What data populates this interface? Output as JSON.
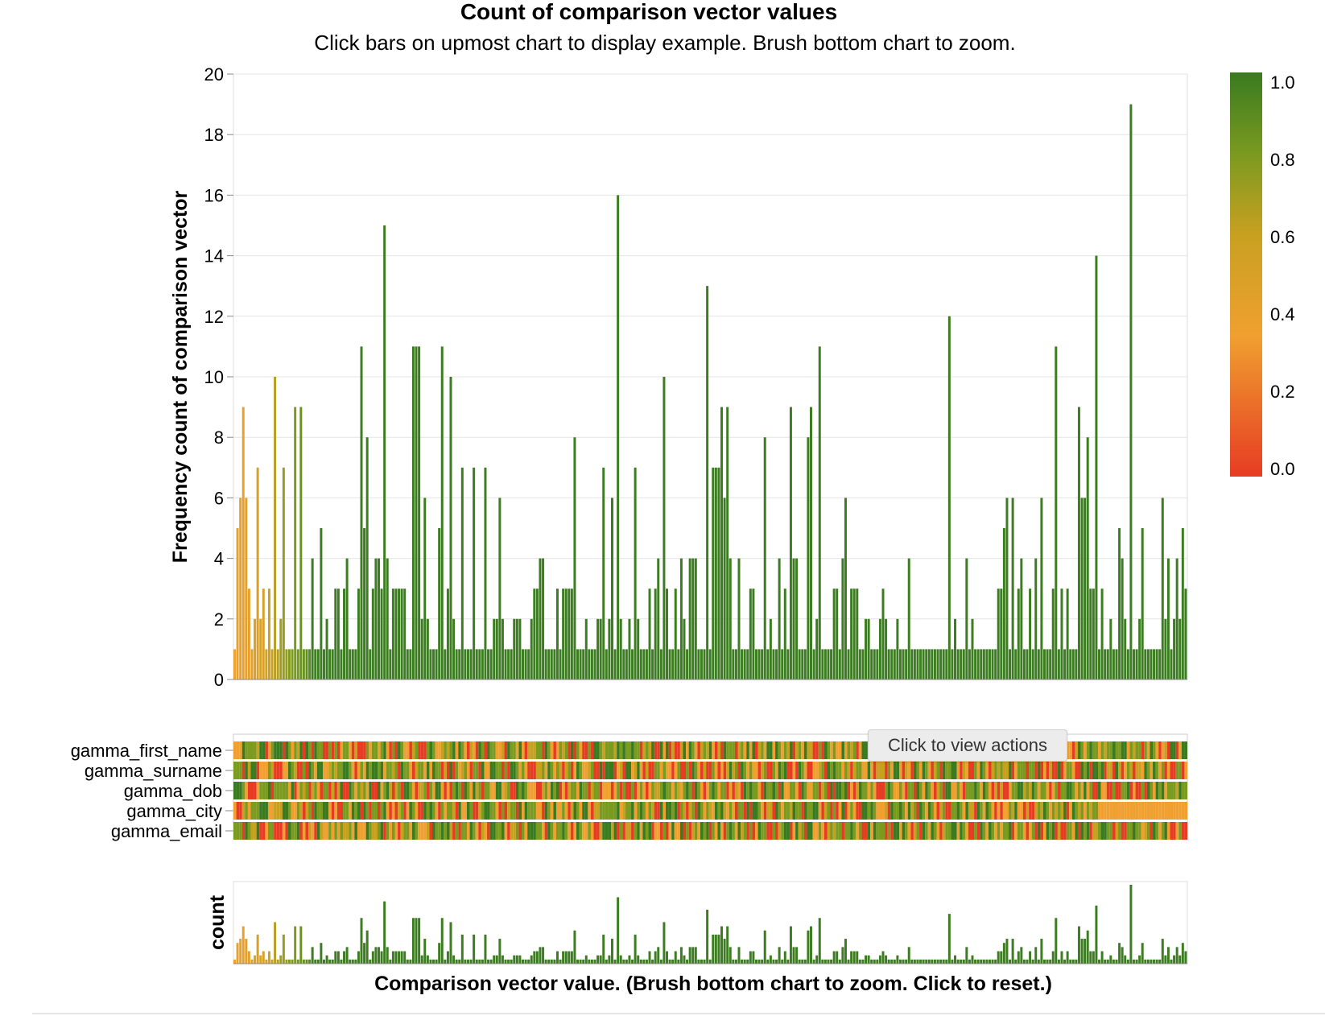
{
  "chart_data": {
    "type": "bar",
    "title": "Count of comparison vector values",
    "subtitle": "Click bars on upmost chart to display example. Brush bottom chart to zoom.",
    "ylabel": "Frequency count of comparison vector",
    "xlabel": "Comparison vector value.  (Brush bottom chart to zoom. Click to reset.)",
    "ylim": [
      0,
      20
    ],
    "y_ticks": [
      "0",
      "2",
      "4",
      "6",
      "8",
      "10",
      "12",
      "14",
      "16",
      "18",
      "20"
    ],
    "grid": true,
    "legend": {
      "placement": "top-right",
      "ticks": [
        "1.0",
        "0.8",
        "0.6",
        "0.4",
        "0.2",
        "0.0"
      ],
      "stops": [
        "#e63c23",
        "#f0a030",
        "#c8a020",
        "#7a9a20",
        "#3a7a20"
      ]
    },
    "overview_ylabel": "count",
    "gamma_rows": [
      "gamma_first_name",
      "gamma_surname",
      "gamma_dob",
      "gamma_city",
      "gamma_email"
    ],
    "values": [
      1,
      5,
      6,
      9,
      6,
      3,
      1,
      2,
      7,
      2,
      3,
      1,
      3,
      1,
      10,
      1,
      2,
      7,
      1,
      1,
      1,
      9,
      1,
      9,
      1,
      1,
      1,
      4,
      1,
      1,
      5,
      1,
      2,
      1,
      1,
      3,
      3,
      1,
      3,
      4,
      1,
      1,
      1,
      3,
      11,
      5,
      8,
      1,
      3,
      4,
      4,
      3,
      15,
      4,
      1,
      3,
      3,
      3,
      3,
      3,
      1,
      1,
      11,
      11,
      11,
      2,
      6,
      2,
      1,
      1,
      1,
      5,
      11,
      1,
      3,
      10,
      2,
      1,
      1,
      7,
      1,
      1,
      1,
      7,
      1,
      1,
      1,
      7,
      1,
      1,
      2,
      2,
      6,
      2,
      1,
      1,
      1,
      2,
      2,
      2,
      1,
      1,
      1,
      2,
      3,
      3,
      4,
      4,
      1,
      1,
      1,
      1,
      3,
      1,
      3,
      3,
      3,
      3,
      8,
      1,
      1,
      1,
      2,
      1,
      1,
      1,
      2,
      2,
      7,
      1,
      2,
      6,
      1,
      16,
      2,
      1,
      1,
      2,
      1,
      7,
      2,
      1,
      1,
      1,
      3,
      1,
      3,
      4,
      1,
      10,
      3,
      1,
      1,
      3,
      1,
      4,
      2,
      1,
      4,
      4,
      4,
      1,
      1,
      1,
      13,
      1,
      7,
      7,
      7,
      9,
      6,
      9,
      4,
      1,
      1,
      4,
      1,
      1,
      1,
      3,
      3,
      1,
      1,
      1,
      8,
      1,
      2,
      1,
      1,
      4,
      1,
      3,
      1,
      9,
      4,
      4,
      1,
      1,
      1,
      8,
      9,
      1,
      2,
      11,
      1,
      1,
      1,
      1,
      3,
      3,
      1,
      4,
      6,
      1,
      3,
      3,
      3,
      1,
      1,
      2,
      2,
      1,
      1,
      1,
      2,
      3,
      2,
      1,
      1,
      1,
      2,
      1,
      1,
      1,
      4,
      1,
      1,
      1,
      1,
      1,
      1,
      1,
      1,
      1,
      1,
      1,
      1,
      1,
      12,
      1,
      2,
      1,
      1,
      1,
      4,
      1,
      2,
      1,
      1,
      1,
      1,
      1,
      1,
      1,
      1,
      3,
      3,
      5,
      6,
      1,
      6,
      1,
      3,
      4,
      1,
      1,
      3,
      1,
      4,
      1,
      6,
      1,
      1,
      1,
      3,
      11,
      1,
      3,
      1,
      3,
      1,
      1,
      1,
      9,
      6,
      6,
      8,
      3,
      3,
      14,
      1,
      3,
      1,
      1,
      2,
      1,
      1,
      5,
      4,
      2,
      1,
      19,
      1,
      1,
      2,
      5,
      1,
      1,
      1,
      1,
      1,
      1,
      6,
      2,
      4,
      1,
      2,
      4,
      2,
      5,
      3
    ],
    "colors": [
      0.35,
      0.4,
      0.38,
      0.4,
      0.42,
      0.4,
      0.45,
      0.48,
      0.5,
      0.5,
      0.5,
      0.55,
      0.55,
      0.6,
      0.65,
      0.65,
      0.7,
      0.72,
      0.75,
      0.78,
      0.8,
      0.8,
      0.82,
      0.85,
      0.85,
      0.88,
      0.9
    ]
  }
}
